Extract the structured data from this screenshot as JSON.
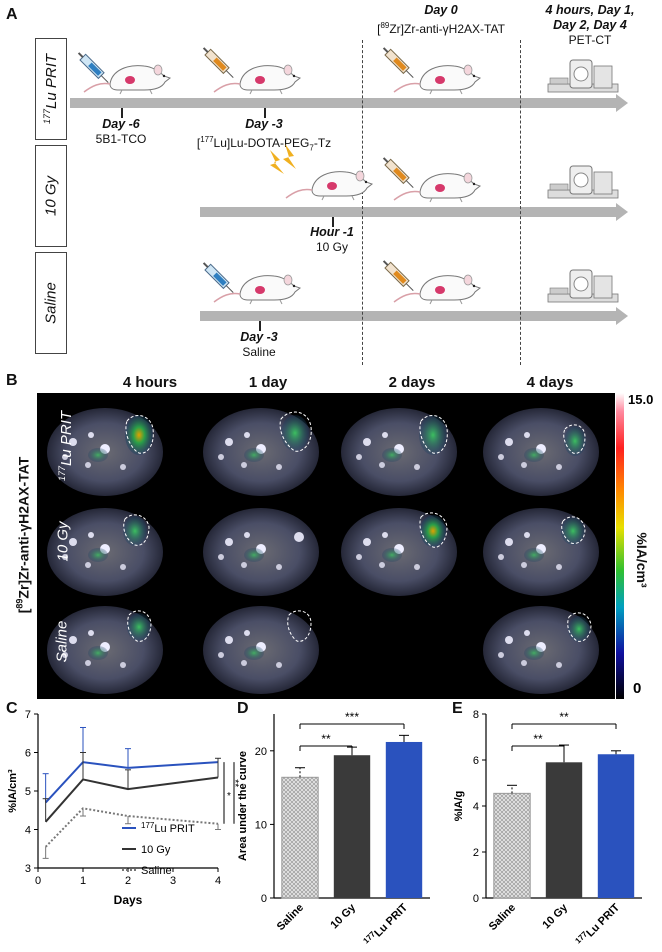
{
  "panel_a": {
    "letter": "A",
    "groups": [
      {
        "label_sup": "177",
        "label": "Lu PRIT"
      },
      {
        "label_sup": "",
        "label": "10 Gy"
      },
      {
        "label_sup": "",
        "label": "Saline"
      }
    ],
    "day_minus6": {
      "day": "Day -6",
      "agent": "5B1-TCO"
    },
    "day_minus3": {
      "day": "Day -3",
      "agent_pre": "[",
      "agent_sup": "177",
      "agent_mid": "Lu]Lu-DOTA-PEG",
      "agent_sub": "7",
      "agent_post": "-Tz"
    },
    "day0": {
      "day": "Day 0",
      "agent_pre": "[",
      "agent_sup": "89",
      "agent_post": "Zr]Zr-anti-γH2AX-TAT"
    },
    "imaging": {
      "line1": "4 hours, Day 1,",
      "line2": "Day 2, Day 4",
      "line3": "PET-CT"
    },
    "hour_minus1": {
      "day": "Hour -1",
      "agent": "10 Gy"
    },
    "saline_day": {
      "day": "Day -3",
      "agent": "Saline"
    }
  },
  "panel_b": {
    "letter": "B",
    "columns": [
      "4 hours",
      "1 day",
      "2 days",
      "4 days"
    ],
    "rows": [
      {
        "sup": "177",
        "label": "Lu PRIT"
      },
      {
        "sup": "",
        "label": "10 Gy"
      },
      {
        "sup": "",
        "label": "Saline"
      }
    ],
    "side_label_pre": "[",
    "side_label_sup": "89",
    "side_label_post": "Zr]Zr-anti-γH2AX-TAT",
    "colorbar": {
      "max": "15.0",
      "min": "0",
      "unit": "%IA/cm³"
    }
  },
  "chart_data": [
    {
      "panel": "C",
      "type": "line",
      "xlabel": "Days",
      "ylabel": "%IA/cm³",
      "xlim": [
        0,
        4
      ],
      "ylim": [
        3,
        7
      ],
      "x_ticks": [
        "0",
        "1",
        "2",
        "3",
        "4"
      ],
      "y_ticks": [
        "3",
        "4",
        "5",
        "6",
        "7"
      ],
      "x": [
        0.17,
        1,
        2,
        4
      ],
      "series": [
        {
          "name": "177Lu PRIT",
          "legend_sup": "177",
          "legend": "Lu PRIT",
          "color": "#2a52be",
          "values": [
            4.7,
            5.75,
            5.6,
            5.75
          ],
          "err": [
            0.75,
            0.9,
            0.5,
            0.0
          ]
        },
        {
          "name": "10 Gy",
          "legend_sup": "",
          "legend": "10 Gy",
          "color": "#333333",
          "values": [
            4.2,
            5.3,
            5.05,
            5.35
          ],
          "err": [
            0.6,
            0.7,
            0.5,
            0.5
          ]
        },
        {
          "name": "Saline",
          "legend_sup": "",
          "legend": "Saline",
          "color": "#777777",
          "values": [
            3.55,
            4.55,
            4.35,
            4.15
          ],
          "err": [
            0.3,
            0.2,
            0.2,
            0.15
          ]
        }
      ],
      "annotations": [
        "*",
        "**"
      ]
    },
    {
      "panel": "D",
      "type": "bar",
      "ylabel": "Area under the curve",
      "ylim": [
        0,
        25
      ],
      "y_ticks": [
        "0",
        "10",
        "20"
      ],
      "categories": [
        "Saline",
        "10 Gy",
        "177Lu PRIT"
      ],
      "category_labels": [
        {
          "sup": "",
          "text": "Saline"
        },
        {
          "sup": "",
          "text": "10 Gy"
        },
        {
          "sup": "177",
          "text": "Lu PRIT"
        }
      ],
      "values": [
        16.4,
        19.4,
        21.2
      ],
      "err": [
        1.3,
        1.1,
        0.9
      ],
      "colors": [
        "#c8c8c8",
        "#3a3a3a",
        "#2a52be"
      ],
      "significance": [
        {
          "from": 0,
          "to": 1,
          "label": "**"
        },
        {
          "from": 0,
          "to": 2,
          "label": "***"
        }
      ]
    },
    {
      "panel": "E",
      "type": "bar",
      "ylabel": "%IA/g",
      "ylim": [
        0,
        8
      ],
      "y_ticks": [
        "0",
        "2",
        "4",
        "6",
        "8"
      ],
      "categories": [
        "Saline",
        "10 Gy",
        "177Lu PRIT"
      ],
      "category_labels": [
        {
          "sup": "",
          "text": "Saline"
        },
        {
          "sup": "",
          "text": "10 Gy"
        },
        {
          "sup": "177",
          "text": "Lu PRIT"
        }
      ],
      "values": [
        4.55,
        5.9,
        6.25
      ],
      "err": [
        0.35,
        0.75,
        0.15
      ],
      "colors": [
        "#c8c8c8",
        "#3a3a3a",
        "#2a52be"
      ],
      "significance": [
        {
          "from": 0,
          "to": 1,
          "label": "**"
        },
        {
          "from": 0,
          "to": 2,
          "label": "**"
        }
      ]
    }
  ]
}
